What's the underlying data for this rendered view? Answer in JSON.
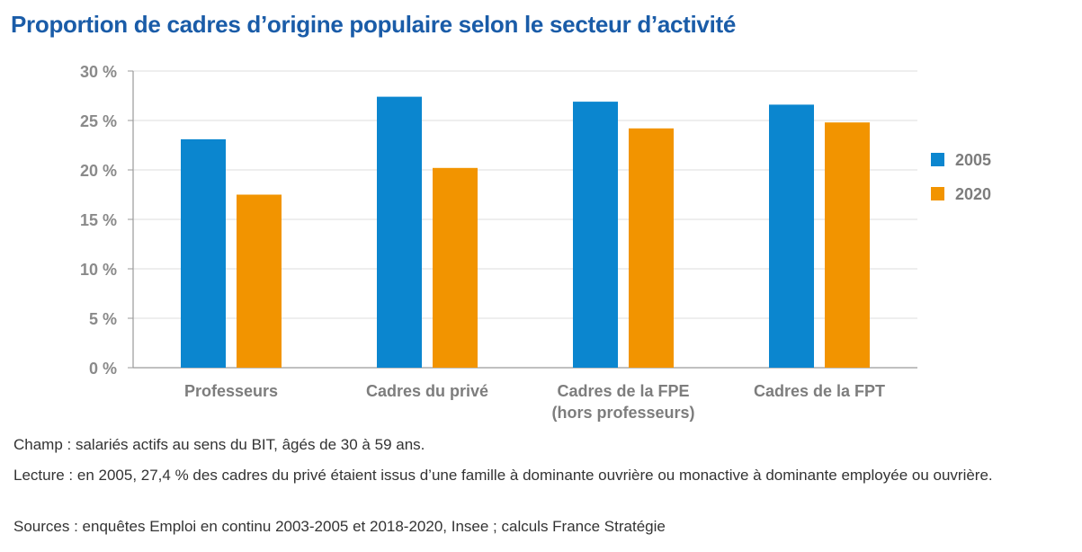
{
  "title": "Proportion de cadres d’origine populaire selon le secteur d’activité",
  "chart_data": {
    "type": "bar",
    "title": "Proportion de cadres d’origine populaire selon le secteur d’activité",
    "categories": [
      [
        "Professeurs"
      ],
      [
        "Cadres du privé"
      ],
      [
        "Cadres de la FPE",
        "(hors professeurs)"
      ],
      [
        "Cadres de la FPT"
      ]
    ],
    "series": [
      {
        "name": "2005",
        "color": "#0b86cf",
        "values": [
          23.1,
          27.4,
          26.9,
          26.6
        ]
      },
      {
        "name": "2020",
        "color": "#f29400",
        "values": [
          17.5,
          20.2,
          24.2,
          24.8
        ]
      }
    ],
    "y_ticks": [
      "0 %",
      "5 %",
      "10 %",
      "15 %",
      "20 %",
      "25 %",
      "30 %"
    ],
    "ylim": [
      0,
      30
    ],
    "y_tick_step": 5,
    "grid": true,
    "legend_position": "right",
    "xlabel": "",
    "ylabel": ""
  },
  "notes": {
    "champ": "Champ : salariés actifs au sens du BIT, âgés de 30 à 59 ans.",
    "lecture": "Lecture : en 2005, 27,4 % des cadres du privé étaient issus d’une famille à dominante ouvrière ou monactive à dominante employée ou ouvrière.",
    "sources": "Sources : enquêtes Emploi en continu 2003-2005 et 2018-2020, Insee ; calculs France Stratégie"
  }
}
